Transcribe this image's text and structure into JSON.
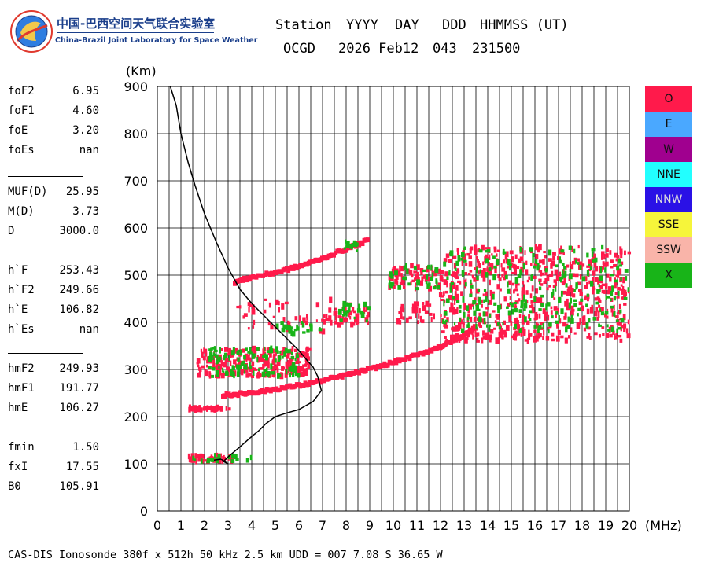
{
  "logo": {
    "name_cn": "中国-巴西空间天气联合实验室",
    "name_en": "China-Brazil Joint Laboratory for Space Weather"
  },
  "header": {
    "labels": [
      "Station",
      "YYYY",
      "DAY",
      "DDD",
      "HHMMSS (UT)"
    ],
    "values": [
      "OCGD",
      "2026 Feb12",
      "043",
      "231500"
    ]
  },
  "params": [
    {
      "label": "foF2",
      "value": "6.95"
    },
    {
      "label": "foF1",
      "value": "4.60"
    },
    {
      "label": "foE",
      "value": "3.20"
    },
    {
      "label": "foEs",
      "value": "nan"
    },
    {
      "label": "MUF(D)",
      "value": "25.95"
    },
    {
      "label": "M(D)",
      "value": "3.73"
    },
    {
      "label": "D",
      "value": "3000.0"
    },
    {
      "label": "h`F",
      "value": "253.43"
    },
    {
      "label": "h`F2",
      "value": "249.66"
    },
    {
      "label": "h`E",
      "value": "106.82"
    },
    {
      "label": "h`Es",
      "value": "nan"
    },
    {
      "label": "hmF2",
      "value": "249.93"
    },
    {
      "label": "hmF1",
      "value": "191.77"
    },
    {
      "label": "hmE",
      "value": "106.27"
    },
    {
      "label": "fmin",
      "value": "1.50"
    },
    {
      "label": "fxI",
      "value": "17.55"
    },
    {
      "label": "B0",
      "value": "105.91"
    }
  ],
  "legend": [
    {
      "label": "O",
      "color": "#ff1a4b"
    },
    {
      "label": "E",
      "color": "#4aa8ff"
    },
    {
      "label": "W",
      "color": "#a0008f"
    },
    {
      "label": "NNE",
      "color": "#22ffff"
    },
    {
      "label": "NNW",
      "color": "#2a11e6"
    },
    {
      "label": "SSE",
      "color": "#f6f53a"
    },
    {
      "label": "SSW",
      "color": "#f9b4a9"
    },
    {
      "label": "X",
      "color": "#18b418"
    }
  ],
  "footer": "CAS-DIS Ionosonde 380f x 512h 50 kHz 2.5 km UDD = 007 7.08 S 36.65 W",
  "chart_data": {
    "type": "scatter",
    "title": "",
    "xlabel": "(MHz)",
    "ylabel": "(Km)",
    "xlim": [
      0,
      20
    ],
    "ylim": [
      0,
      900
    ],
    "x_ticks": [
      "0",
      "1",
      "2",
      "3",
      "4",
      "5",
      "6",
      "7",
      "8",
      "9",
      "10",
      "11",
      "12",
      "13",
      "14",
      "15",
      "16",
      "17",
      "18",
      "19",
      "20"
    ],
    "y_ticks": [
      "0",
      "100",
      "200",
      "300",
      "400",
      "500",
      "600",
      "700",
      "800",
      "900"
    ],
    "grid": true,
    "series": [
      {
        "name": "O",
        "color": "#ff1a4b",
        "clusters": [
          {
            "x": [
              1.2,
              3.1
            ],
            "y": [
              213,
              220
            ],
            "n": 45
          },
          {
            "x": [
              1.3,
              3.2
            ],
            "y": [
              104,
              118
            ],
            "n": 45
          },
          {
            "x": [
              1.7,
              6.5
            ],
            "y": [
              285,
              345
            ],
            "n": 260
          },
          {
            "x": [
              3.2,
              8.2
            ],
            "y": [
              380,
              450
            ],
            "n": 60
          },
          {
            "x": [
              7.0,
              9.0
            ],
            "y": [
              395,
              430
            ],
            "n": 40
          },
          {
            "x": [
              9.8,
              12.0
            ],
            "y": [
              470,
              520
            ],
            "n": 70
          },
          {
            "x": [
              10.2,
              11.8
            ],
            "y": [
              400,
              440
            ],
            "n": 35
          },
          {
            "x": [
              12.0,
              20.0
            ],
            "y": [
              360,
              560
            ],
            "n": 600
          },
          {
            "x": [
              13.0,
              16.5
            ],
            "y": [
              360,
              380
            ],
            "n": 40
          }
        ],
        "traces": [
          {
            "x": [
              2.8,
              3.5,
              4.2,
              5.0,
              6.0,
              7.0,
              8.0,
              9.0,
              10.0,
              11.0,
              12.0,
              12.5,
              13.0,
              13.5
            ],
            "y": [
              245,
              248,
              252,
              258,
              266,
              276,
              288,
              300,
              315,
              330,
              348,
              360,
              372,
              390
            ]
          },
          {
            "x": [
              3.3,
              4.0,
              5.0,
              6.0,
              7.0,
              8.0,
              9.0
            ],
            "y": [
              485,
              495,
              505,
              518,
              535,
              555,
              575
            ]
          }
        ]
      },
      {
        "name": "X",
        "color": "#18b418",
        "clusters": [
          {
            "x": [
              1.5,
              4.0
            ],
            "y": [
              104,
              118
            ],
            "n": 20
          },
          {
            "x": [
              2.2,
              6.0
            ],
            "y": [
              285,
              345
            ],
            "n": 120
          },
          {
            "x": [
              5.0,
              7.0
            ],
            "y": [
              375,
              400
            ],
            "n": 25
          },
          {
            "x": [
              7.5,
              9.0
            ],
            "y": [
              400,
              440
            ],
            "n": 20
          },
          {
            "x": [
              7.8,
              8.5
            ],
            "y": [
              545,
              575
            ],
            "n": 12
          },
          {
            "x": [
              9.8,
              12.0
            ],
            "y": [
              470,
              520
            ],
            "n": 35
          },
          {
            "x": [
              12.0,
              20.0
            ],
            "y": [
              380,
              560
            ],
            "n": 250
          }
        ],
        "traces": []
      }
    ],
    "profile_curve": {
      "name": "",
      "color": "#000000",
      "x": [
        0.55,
        0.8,
        1.0,
        1.3,
        1.6,
        2.0,
        2.5,
        3.0,
        3.5,
        4.0,
        4.5,
        5.0,
        5.5,
        6.0,
        6.3,
        6.6,
        6.8,
        6.95,
        6.6,
        6.0,
        5.5,
        5.0,
        4.6,
        4.3,
        4.0,
        3.5,
        3.0,
        2.8,
        3.0,
        2.7,
        2.4
      ],
      "y": [
        900,
        860,
        800,
        740,
        690,
        630,
        570,
        515,
        470,
        440,
        415,
        390,
        365,
        340,
        322,
        305,
        285,
        255,
        232,
        215,
        208,
        200,
        185,
        170,
        158,
        136,
        115,
        105,
        100,
        110,
        108
      ]
    }
  }
}
